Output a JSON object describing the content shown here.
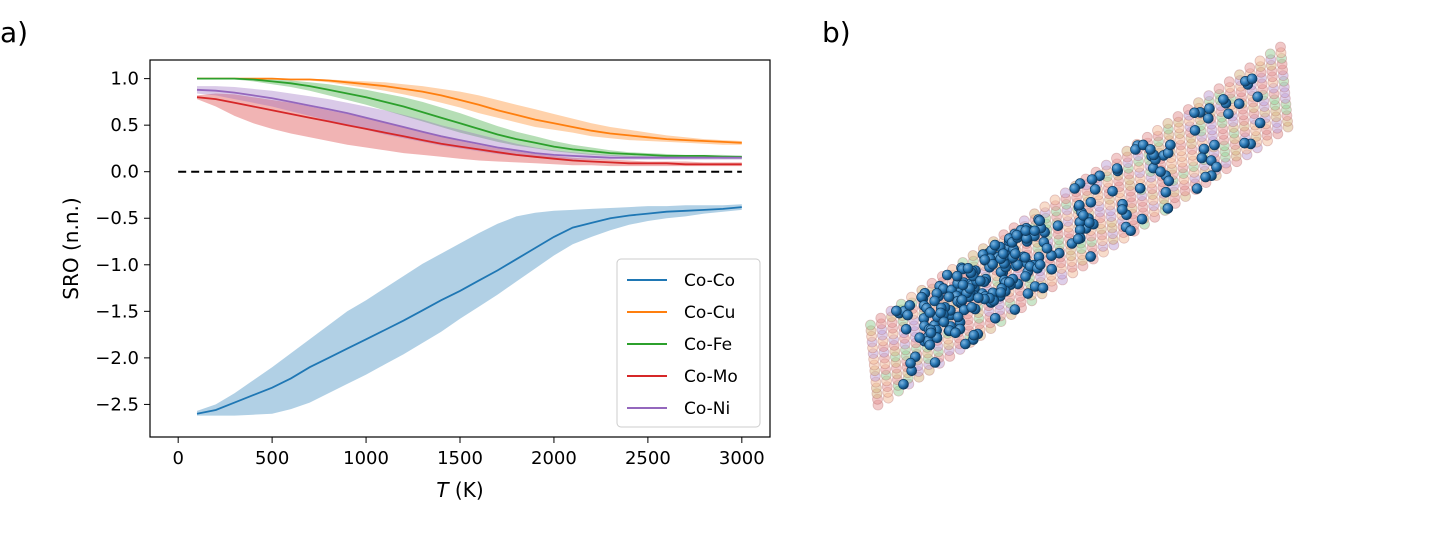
{
  "panels": {
    "a_label": "a)",
    "b_label": "b)"
  },
  "chart_data": {
    "type": "line",
    "xlabel": "T (K)",
    "xlabel_var": "T",
    "xlabel_unit": " (K)",
    "ylabel": "SRO (n.n.)",
    "xlim": [
      -150,
      3150
    ],
    "ylim": [
      -2.85,
      1.2
    ],
    "xticks": [
      0,
      500,
      1000,
      1500,
      2000,
      2500,
      3000
    ],
    "xtick_labels": [
      "0",
      "500",
      "1000",
      "1500",
      "2000",
      "2500",
      "3000"
    ],
    "yticks": [
      1.0,
      0.5,
      0.0,
      -0.5,
      -1.0,
      -1.5,
      -2.0,
      -2.5
    ],
    "ytick_labels": [
      "1.0",
      "0.5",
      "0.0",
      "−0.5",
      "−1.0",
      "−1.5",
      "−2.0",
      "−2.5"
    ],
    "grid": false,
    "legend_position": "lower-right",
    "reference_line": {
      "y": 0.0,
      "style": "dashed",
      "x_range": [
        0,
        3000
      ]
    },
    "x": [
      100,
      200,
      300,
      400,
      500,
      600,
      700,
      800,
      900,
      1000,
      1100,
      1200,
      1300,
      1400,
      1500,
      1600,
      1700,
      1800,
      1900,
      2000,
      2100,
      2200,
      2300,
      2400,
      2500,
      2600,
      2700,
      2800,
      2900,
      3000
    ],
    "series": [
      {
        "name": "Co-Co",
        "color": "#1f77b4",
        "values": [
          -2.6,
          -2.56,
          -2.48,
          -2.4,
          -2.32,
          -2.22,
          -2.1,
          -2.0,
          -1.9,
          -1.8,
          -1.7,
          -1.6,
          -1.49,
          -1.38,
          -1.28,
          -1.17,
          -1.06,
          -0.94,
          -0.82,
          -0.7,
          -0.6,
          -0.55,
          -0.5,
          -0.47,
          -0.45,
          -0.43,
          -0.42,
          -0.41,
          -0.4,
          -0.38
        ],
        "lower": [
          -2.62,
          -2.62,
          -2.62,
          -2.61,
          -2.6,
          -2.55,
          -2.48,
          -2.38,
          -2.28,
          -2.18,
          -2.07,
          -1.96,
          -1.84,
          -1.72,
          -1.58,
          -1.45,
          -1.32,
          -1.18,
          -1.04,
          -0.9,
          -0.78,
          -0.7,
          -0.63,
          -0.57,
          -0.53,
          -0.5,
          -0.48,
          -0.45,
          -0.43,
          -0.41
        ],
        "upper": [
          -2.57,
          -2.5,
          -2.38,
          -2.24,
          -2.1,
          -1.95,
          -1.8,
          -1.65,
          -1.5,
          -1.38,
          -1.25,
          -1.12,
          -0.99,
          -0.88,
          -0.77,
          -0.66,
          -0.56,
          -0.48,
          -0.44,
          -0.42,
          -0.41,
          -0.4,
          -0.39,
          -0.38,
          -0.37,
          -0.37,
          -0.36,
          -0.36,
          -0.36,
          -0.35
        ]
      },
      {
        "name": "Co-Cu",
        "color": "#ff7f0e",
        "values": [
          1.0,
          1.0,
          1.0,
          1.0,
          1.0,
          0.99,
          0.99,
          0.98,
          0.96,
          0.94,
          0.92,
          0.89,
          0.86,
          0.82,
          0.77,
          0.72,
          0.66,
          0.61,
          0.56,
          0.52,
          0.48,
          0.44,
          0.41,
          0.39,
          0.37,
          0.35,
          0.34,
          0.33,
          0.32,
          0.31
        ],
        "lower": [
          1.0,
          1.0,
          1.0,
          1.0,
          1.0,
          0.99,
          0.98,
          0.96,
          0.93,
          0.9,
          0.87,
          0.83,
          0.79,
          0.74,
          0.69,
          0.63,
          0.58,
          0.53,
          0.48,
          0.45,
          0.42,
          0.38,
          0.36,
          0.34,
          0.33,
          0.32,
          0.31,
          0.3,
          0.29,
          0.29
        ],
        "upper": [
          1.0,
          1.0,
          1.0,
          1.0,
          1.0,
          1.0,
          1.0,
          0.99,
          0.98,
          0.97,
          0.96,
          0.94,
          0.92,
          0.89,
          0.86,
          0.82,
          0.77,
          0.72,
          0.67,
          0.62,
          0.57,
          0.52,
          0.48,
          0.45,
          0.42,
          0.39,
          0.37,
          0.35,
          0.34,
          0.33
        ]
      },
      {
        "name": "Co-Fe",
        "color": "#2ca02c",
        "values": [
          1.0,
          1.0,
          1.0,
          0.99,
          0.97,
          0.95,
          0.92,
          0.88,
          0.84,
          0.8,
          0.75,
          0.7,
          0.64,
          0.58,
          0.52,
          0.46,
          0.4,
          0.35,
          0.31,
          0.27,
          0.24,
          0.22,
          0.2,
          0.19,
          0.18,
          0.17,
          0.17,
          0.17,
          0.16,
          0.16
        ],
        "lower": [
          1.0,
          1.0,
          0.99,
          0.97,
          0.94,
          0.91,
          0.87,
          0.82,
          0.77,
          0.72,
          0.66,
          0.6,
          0.54,
          0.48,
          0.42,
          0.37,
          0.32,
          0.28,
          0.25,
          0.22,
          0.2,
          0.18,
          0.17,
          0.16,
          0.16,
          0.15,
          0.15,
          0.15,
          0.14,
          0.14
        ],
        "upper": [
          1.0,
          1.0,
          1.0,
          1.0,
          0.99,
          0.98,
          0.96,
          0.94,
          0.91,
          0.88,
          0.84,
          0.8,
          0.75,
          0.69,
          0.63,
          0.56,
          0.49,
          0.43,
          0.38,
          0.33,
          0.29,
          0.26,
          0.23,
          0.21,
          0.2,
          0.19,
          0.18,
          0.18,
          0.18,
          0.17
        ]
      },
      {
        "name": "Co-Mo",
        "color": "#d62728",
        "values": [
          0.8,
          0.78,
          0.74,
          0.7,
          0.66,
          0.62,
          0.58,
          0.54,
          0.5,
          0.46,
          0.42,
          0.38,
          0.34,
          0.3,
          0.27,
          0.24,
          0.21,
          0.18,
          0.16,
          0.14,
          0.12,
          0.11,
          0.1,
          0.09,
          0.09,
          0.09,
          0.08,
          0.08,
          0.08,
          0.08
        ],
        "lower": [
          0.78,
          0.7,
          0.6,
          0.52,
          0.46,
          0.41,
          0.37,
          0.33,
          0.29,
          0.26,
          0.23,
          0.2,
          0.18,
          0.16,
          0.14,
          0.12,
          0.11,
          0.1,
          0.09,
          0.08,
          0.07,
          0.07,
          0.06,
          0.06,
          0.06,
          0.06,
          0.06,
          0.06,
          0.06,
          0.06
        ],
        "upper": [
          0.82,
          0.84,
          0.83,
          0.8,
          0.77,
          0.74,
          0.7,
          0.66,
          0.62,
          0.58,
          0.53,
          0.48,
          0.43,
          0.38,
          0.33,
          0.29,
          0.25,
          0.22,
          0.19,
          0.17,
          0.15,
          0.14,
          0.13,
          0.12,
          0.11,
          0.11,
          0.11,
          0.1,
          0.1,
          0.1
        ]
      },
      {
        "name": "Co-Ni",
        "color": "#9467bd",
        "values": [
          0.88,
          0.87,
          0.85,
          0.82,
          0.79,
          0.75,
          0.71,
          0.67,
          0.63,
          0.58,
          0.53,
          0.48,
          0.43,
          0.38,
          0.34,
          0.3,
          0.26,
          0.23,
          0.2,
          0.18,
          0.17,
          0.16,
          0.15,
          0.15,
          0.15,
          0.15,
          0.15,
          0.15,
          0.15,
          0.15
        ],
        "lower": [
          0.84,
          0.82,
          0.78,
          0.74,
          0.7,
          0.65,
          0.6,
          0.55,
          0.5,
          0.45,
          0.4,
          0.36,
          0.32,
          0.28,
          0.25,
          0.22,
          0.19,
          0.17,
          0.15,
          0.14,
          0.13,
          0.13,
          0.13,
          0.13,
          0.13,
          0.13,
          0.13,
          0.13,
          0.13,
          0.13
        ],
        "upper": [
          0.92,
          0.92,
          0.91,
          0.89,
          0.87,
          0.84,
          0.81,
          0.78,
          0.74,
          0.7,
          0.66,
          0.61,
          0.56,
          0.5,
          0.45,
          0.4,
          0.35,
          0.3,
          0.26,
          0.23,
          0.21,
          0.19,
          0.18,
          0.17,
          0.17,
          0.17,
          0.17,
          0.17,
          0.17,
          0.17
        ]
      }
    ]
  }
}
